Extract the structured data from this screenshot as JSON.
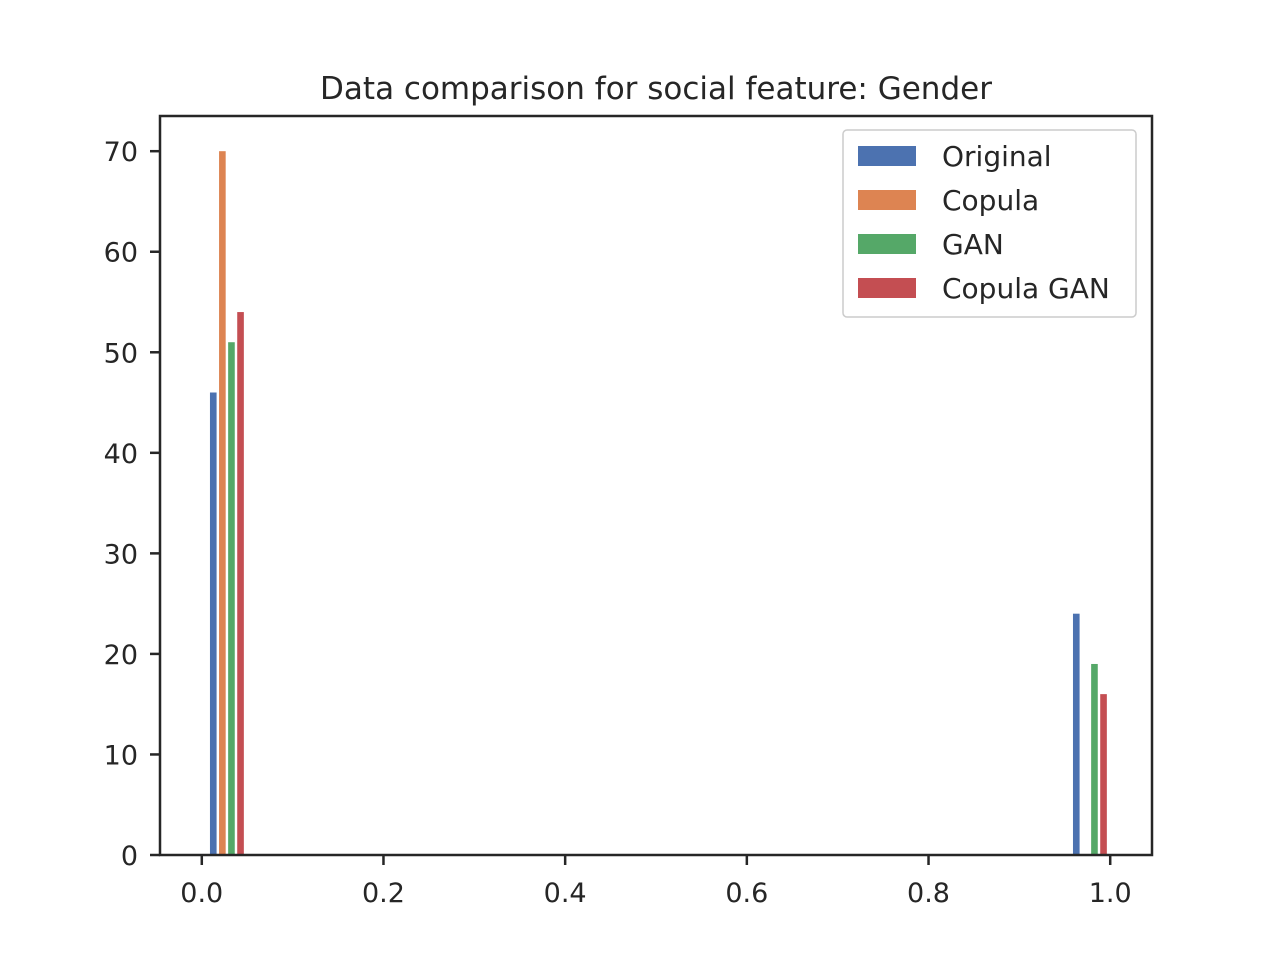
{
  "chart_data": {
    "type": "bar",
    "title": "Data comparison for social feature: Gender",
    "xlabel": "",
    "ylabel": "",
    "xlim": [
      -0.046,
      1.046
    ],
    "ylim": [
      0,
      73.5
    ],
    "xticks": [
      0.0,
      0.2,
      0.4,
      0.6,
      0.8,
      1.0
    ],
    "xtick_labels": [
      "0.0",
      "0.2",
      "0.4",
      "0.6",
      "0.8",
      "1.0"
    ],
    "yticks": [
      0,
      10,
      20,
      30,
      40,
      50,
      60,
      70
    ],
    "ytick_labels": [
      "0",
      "10",
      "20",
      "30",
      "40",
      "50",
      "60",
      "70"
    ],
    "grid": false,
    "legend_position": "top-right",
    "bar_width": 0.0073,
    "series": [
      {
        "name": "Original",
        "color": "#4c72b0",
        "x": [
          0.009,
          0.959
        ],
        "values": [
          46,
          24
        ]
      },
      {
        "name": "Copula",
        "color": "#dd8452",
        "x": [
          0.019,
          0.969
        ],
        "values": [
          70,
          0
        ]
      },
      {
        "name": "GAN",
        "color": "#55a868",
        "x": [
          0.029,
          0.979
        ],
        "values": [
          51,
          19
        ]
      },
      {
        "name": "Copula GAN",
        "color": "#c44e52",
        "x": [
          0.039,
          0.989
        ],
        "values": [
          54,
          16
        ]
      }
    ]
  }
}
